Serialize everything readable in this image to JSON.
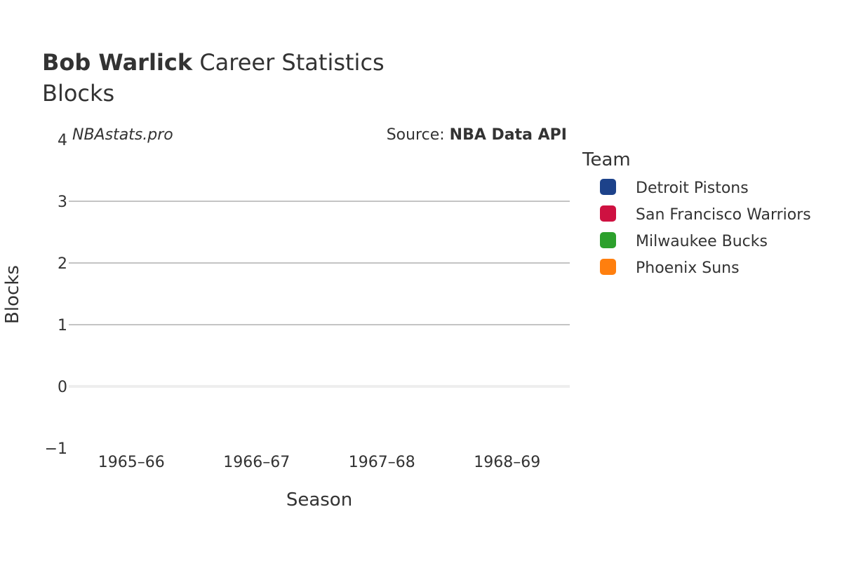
{
  "chart_data": {
    "type": "line",
    "title_bold": "Bob Warlick",
    "title_rest": " Career Statistics",
    "subtitle": "Blocks",
    "watermark": "NBAstats.pro",
    "source_prefix": "Source: ",
    "source_name": "NBA Data API",
    "xlabel": "Season",
    "ylabel": "Blocks",
    "categories": [
      "1965–66",
      "1966–67",
      "1967–68",
      "1968–69"
    ],
    "y_ticks": [
      {
        "value": 4,
        "label": "4"
      },
      {
        "value": 3,
        "label": "3"
      },
      {
        "value": 2,
        "label": "2"
      },
      {
        "value": 1,
        "label": "1"
      },
      {
        "value": 0,
        "label": "0"
      },
      {
        "value": -1,
        "label": "−1"
      }
    ],
    "ylim": [
      -1,
      4
    ],
    "grid": true,
    "legend": {
      "title": "Team",
      "placement": "right",
      "items": [
        {
          "name": "Detroit Pistons",
          "color": "#1d428a"
        },
        {
          "name": "San Francisco Warriors",
          "color": "#ce1141"
        },
        {
          "name": "Milwaukee Bucks",
          "color": "#2ca02c"
        },
        {
          "name": "Phoenix Suns",
          "color": "#ff7f0e"
        }
      ]
    },
    "series": []
  }
}
